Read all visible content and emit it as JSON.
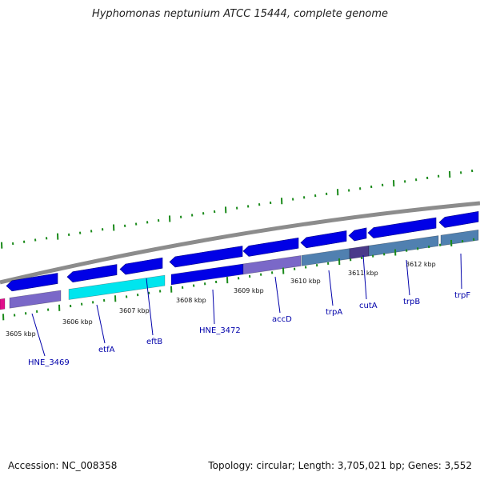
{
  "title": "Hyphomonas neptunium ATCC 15444, complete genome",
  "footer": {
    "accession": "Accession: NC_008358",
    "stats": "Topology: circular; Length: 3,705,021 bp; Genes: 3,552"
  },
  "colors": {
    "forward_gene": "#0000e6",
    "lower_blue": "#5080b0",
    "lower_purple": "#7a68c8",
    "lower_cyan": "#00e5ee",
    "lower_dark_purple": "#4a3a8a",
    "magenta": "#e0108a",
    "backbone": "#8c8c8c",
    "tick": "#1a8a1a",
    "label_line": "#0000aa"
  },
  "scale": {
    "unit": "kbp",
    "kbp_labels": [
      "3605 kbp",
      "3606 kbp",
      "3607 kbp",
      "3608 kbp",
      "3609 kbp",
      "3610 kbp",
      "3611 kbp",
      "3612 kbp"
    ]
  },
  "genes": [
    {
      "name": "HNE_3469"
    },
    {
      "name": "etfA"
    },
    {
      "name": "eftB"
    },
    {
      "name": "HNE_3472"
    },
    {
      "name": "accD"
    },
    {
      "name": "trpA"
    },
    {
      "name": "cutA"
    },
    {
      "name": "trpB"
    },
    {
      "name": "trpF"
    }
  ]
}
